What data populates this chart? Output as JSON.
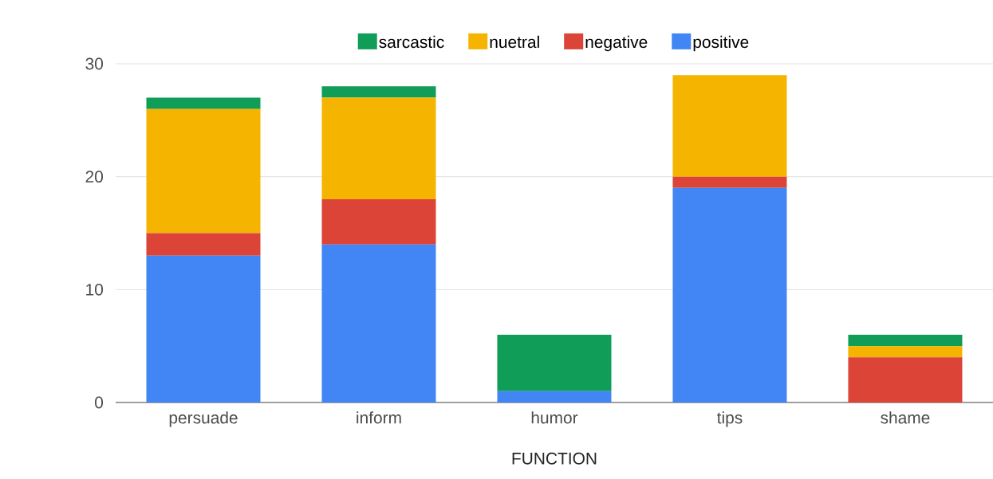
{
  "chart_data": {
    "type": "bar",
    "stacked": true,
    "xlabel": "FUNCTION",
    "categories": [
      "persuade",
      "inform",
      "humor",
      "tips",
      "shame"
    ],
    "series": [
      {
        "name": "positive",
        "color": "#4285f4",
        "values": [
          13,
          14,
          1,
          19,
          0
        ]
      },
      {
        "name": "negative",
        "color": "#db4437",
        "values": [
          2,
          4,
          0,
          1,
          4
        ]
      },
      {
        "name": "nuetral",
        "color": "#f4b400",
        "values": [
          11,
          9,
          0,
          9,
          1
        ]
      },
      {
        "name": "sarcastic",
        "color": "#0f9d58",
        "values": [
          1,
          1,
          5,
          0,
          1
        ]
      }
    ],
    "ylim": [
      0,
      30
    ],
    "yticks": [
      0,
      10,
      20,
      30
    ],
    "grid": "y",
    "legend": "top"
  }
}
